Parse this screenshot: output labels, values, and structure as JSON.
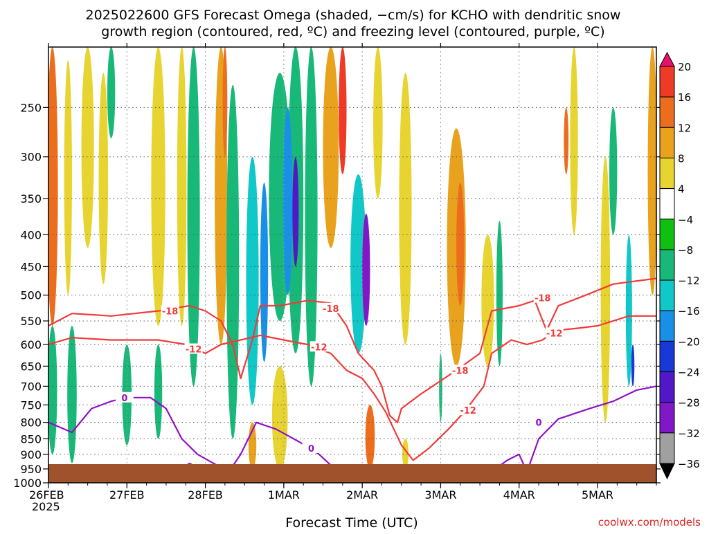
{
  "chart_data": {
    "type": "heatmap",
    "title_line1": "2025022600 GFS Forecast Omega (shaded, −cm/s) for KCHO with dendritic snow",
    "title_line2": "growth region (contoured, red, ºC) and freezing level (contoured, purple, ºC)",
    "xlabel": "Forecast Time (UTC)",
    "ylabel": "",
    "credit": "coolwx.com/models",
    "x_ticks": [
      "26FEB",
      "27FEB",
      "28FEB",
      "1MAR",
      "2MAR",
      "3MAR",
      "4MAR",
      "5MAR"
    ],
    "x_year": "2025",
    "x_range_days": [
      0,
      7.75
    ],
    "y_ticks": [
      250,
      300,
      350,
      400,
      450,
      500,
      550,
      600,
      650,
      700,
      750,
      800,
      850,
      900,
      950,
      1000
    ],
    "y_tick_labels": [
      "250",
      "300",
      "350",
      "400",
      "450",
      "500",
      "550",
      "600",
      "650",
      "700",
      "750",
      "800",
      "850",
      "900",
      "950",
      "1000"
    ],
    "y_range_hpa": [
      1000,
      200
    ],
    "y_scale": "log-pressure",
    "grid": true,
    "colorbar": {
      "labels": [
        "20",
        "16",
        "12",
        "8",
        "4",
        "−4",
        "−8",
        "−12",
        "−16",
        "−20",
        "−24",
        "−28",
        "−32",
        "−36"
      ],
      "colors": [
        "#e8106e",
        "#ee3a26",
        "#ec6e1c",
        "#e8a21e",
        "#e8d430",
        "#ffffff",
        "#10c010",
        "#18b878",
        "#10c8c8",
        "#1890e8",
        "#1838d8",
        "#5018c8",
        "#8018c8",
        "#a0a0a0",
        "#000000"
      ]
    },
    "ground_color": "#a0522d",
    "omega_features": [
      {
        "day": 0.05,
        "p_top": 200,
        "p_bot": 560,
        "width": 0.07,
        "value": 12
      },
      {
        "day": 0.25,
        "p_top": 210,
        "p_bot": 500,
        "width": 0.05,
        "value": 6
      },
      {
        "day": 0.5,
        "p_top": 200,
        "p_bot": 420,
        "width": 0.08,
        "value": 6
      },
      {
        "day": 0.7,
        "p_top": 220,
        "p_bot": 480,
        "width": 0.06,
        "value": 6
      },
      {
        "day": 0.8,
        "p_top": 200,
        "p_bot": 280,
        "width": 0.05,
        "value": -8
      },
      {
        "day": 0.05,
        "p_top": 560,
        "p_bot": 900,
        "width": 0.06,
        "value": -8
      },
      {
        "day": 0.3,
        "p_top": 560,
        "p_bot": 930,
        "width": 0.06,
        "value": -8
      },
      {
        "day": 1.0,
        "p_top": 600,
        "p_bot": 870,
        "width": 0.06,
        "value": -8
      },
      {
        "day": 1.4,
        "p_top": 200,
        "p_bot": 560,
        "width": 0.09,
        "value": 6
      },
      {
        "day": 1.4,
        "p_top": 600,
        "p_bot": 850,
        "width": 0.05,
        "value": -8
      },
      {
        "day": 1.7,
        "p_top": 200,
        "p_bot": 560,
        "width": 0.06,
        "value": 6
      },
      {
        "day": 1.85,
        "p_top": 200,
        "p_bot": 700,
        "width": 0.08,
        "value": -8
      },
      {
        "day": 2.2,
        "p_top": 200,
        "p_bot": 600,
        "width": 0.08,
        "value": 8
      },
      {
        "day": 2.25,
        "p_top": 200,
        "p_bot": 300,
        "width": 0.03,
        "value": 14
      },
      {
        "day": 2.35,
        "p_top": 230,
        "p_bot": 850,
        "width": 0.08,
        "value": -8
      },
      {
        "day": 2.6,
        "p_top": 300,
        "p_bot": 750,
        "width": 0.08,
        "value": -12
      },
      {
        "day": 2.6,
        "p_top": 800,
        "p_bot": 950,
        "width": 0.05,
        "value": 10
      },
      {
        "day": 2.75,
        "p_top": 330,
        "p_bot": 640,
        "width": 0.05,
        "value": -18
      },
      {
        "day": 2.95,
        "p_top": 220,
        "p_bot": 550,
        "width": 0.14,
        "value": -8
      },
      {
        "day": 2.95,
        "p_top": 650,
        "p_bot": 950,
        "width": 0.1,
        "value": 6
      },
      {
        "day": 3.15,
        "p_top": 200,
        "p_bot": 620,
        "width": 0.1,
        "value": -8
      },
      {
        "day": 3.05,
        "p_top": 250,
        "p_bot": 500,
        "width": 0.06,
        "value": -16
      },
      {
        "day": 3.15,
        "p_top": 300,
        "p_bot": 450,
        "width": 0.04,
        "value": -24
      },
      {
        "day": 3.35,
        "p_top": 200,
        "p_bot": 700,
        "width": 0.08,
        "value": -8
      },
      {
        "day": 3.6,
        "p_top": 200,
        "p_bot": 420,
        "width": 0.1,
        "value": 8
      },
      {
        "day": 3.75,
        "p_top": 200,
        "p_bot": 320,
        "width": 0.05,
        "value": 18
      },
      {
        "day": 3.95,
        "p_top": 320,
        "p_bot": 620,
        "width": 0.1,
        "value": -12
      },
      {
        "day": 4.05,
        "p_top": 370,
        "p_bot": 560,
        "width": 0.05,
        "value": -28
      },
      {
        "day": 4.1,
        "p_top": 750,
        "p_bot": 950,
        "width": 0.06,
        "value": 14
      },
      {
        "day": 4.2,
        "p_top": 200,
        "p_bot": 350,
        "width": 0.06,
        "value": 6
      },
      {
        "day": 4.55,
        "p_top": 220,
        "p_bot": 600,
        "width": 0.08,
        "value": 6
      },
      {
        "day": 4.55,
        "p_top": 850,
        "p_bot": 950,
        "width": 0.04,
        "value": 6
      },
      {
        "day": 5.0,
        "p_top": 620,
        "p_bot": 800,
        "width": 0.02,
        "value": -8
      },
      {
        "day": 5.2,
        "p_top": 270,
        "p_bot": 650,
        "width": 0.12,
        "value": 8
      },
      {
        "day": 5.25,
        "p_top": 330,
        "p_bot": 520,
        "width": 0.05,
        "value": 12
      },
      {
        "day": 5.6,
        "p_top": 400,
        "p_bot": 650,
        "width": 0.08,
        "value": 6
      },
      {
        "day": 5.75,
        "p_top": 380,
        "p_bot": 650,
        "width": 0.04,
        "value": -8
      },
      {
        "day": 6.6,
        "p_top": 250,
        "p_bot": 320,
        "width": 0.03,
        "value": 14
      },
      {
        "day": 6.7,
        "p_top": 200,
        "p_bot": 400,
        "width": 0.05,
        "value": 6
      },
      {
        "day": 7.1,
        "p_top": 300,
        "p_bot": 800,
        "width": 0.06,
        "value": 6
      },
      {
        "day": 7.2,
        "p_top": 250,
        "p_bot": 400,
        "width": 0.05,
        "value": -10
      },
      {
        "day": 7.4,
        "p_top": 400,
        "p_bot": 700,
        "width": 0.04,
        "value": -12
      },
      {
        "day": 7.45,
        "p_top": 600,
        "p_bot": 700,
        "width": 0.02,
        "value": -20
      },
      {
        "day": 7.7,
        "p_top": 200,
        "p_bot": 500,
        "width": 0.06,
        "value": 8
      }
    ],
    "contours": [
      {
        "label": "-18",
        "color": "#f03a3a",
        "label_at": [
          [
            1.55,
            530
          ],
          [
            3.6,
            525
          ],
          [
            5.25,
            660
          ],
          [
            6.3,
            505
          ]
        ],
        "points": [
          [
            0,
            560
          ],
          [
            0.3,
            535
          ],
          [
            0.8,
            540
          ],
          [
            1.4,
            530
          ],
          [
            1.8,
            520
          ],
          [
            2.0,
            530
          ],
          [
            2.2,
            550
          ],
          [
            2.35,
            600
          ],
          [
            2.45,
            680
          ],
          [
            2.6,
            590
          ],
          [
            2.7,
            520
          ],
          [
            2.95,
            520
          ],
          [
            3.3,
            510
          ],
          [
            3.6,
            515
          ],
          [
            3.8,
            560
          ],
          [
            3.95,
            620
          ],
          [
            4.15,
            660
          ],
          [
            4.25,
            700
          ],
          [
            4.35,
            780
          ],
          [
            4.45,
            800
          ],
          [
            4.5,
            760
          ],
          [
            4.75,
            720
          ],
          [
            5.2,
            660
          ],
          [
            5.5,
            620
          ],
          [
            5.65,
            530
          ],
          [
            6.0,
            520
          ],
          [
            6.2,
            510
          ],
          [
            6.35,
            570
          ],
          [
            6.5,
            520
          ],
          [
            6.85,
            500
          ],
          [
            7.2,
            480
          ],
          [
            7.75,
            470
          ]
        ]
      },
      {
        "label": "-12",
        "color": "#f03a3a",
        "label_at": [
          [
            1.85,
            610
          ],
          [
            3.45,
            605
          ],
          [
            5.35,
            765
          ],
          [
            6.45,
            575
          ]
        ],
        "points": [
          [
            0,
            600
          ],
          [
            0.3,
            585
          ],
          [
            0.8,
            590
          ],
          [
            1.4,
            590
          ],
          [
            1.75,
            600
          ],
          [
            2.0,
            620
          ],
          [
            2.2,
            600
          ],
          [
            2.45,
            590
          ],
          [
            2.7,
            580
          ],
          [
            3.0,
            590
          ],
          [
            3.3,
            600
          ],
          [
            3.6,
            620
          ],
          [
            3.8,
            660
          ],
          [
            4.0,
            680
          ],
          [
            4.15,
            720
          ],
          [
            4.3,
            770
          ],
          [
            4.5,
            870
          ],
          [
            4.65,
            920
          ],
          [
            4.85,
            880
          ],
          [
            5.1,
            820
          ],
          [
            5.3,
            770
          ],
          [
            5.55,
            700
          ],
          [
            5.65,
            620
          ],
          [
            5.9,
            590
          ],
          [
            6.1,
            600
          ],
          [
            6.3,
            590
          ],
          [
            6.45,
            570
          ],
          [
            6.75,
            565
          ],
          [
            7.0,
            560
          ],
          [
            7.4,
            540
          ],
          [
            7.75,
            540
          ]
        ]
      },
      {
        "label": "0",
        "color": "#9010c8",
        "label_at": [
          [
            0.97,
            730
          ],
          [
            1.8,
            940
          ],
          [
            3.35,
            880
          ],
          [
            5.5,
            995
          ],
          [
            6.25,
            800
          ]
        ],
        "points": [
          [
            0,
            800
          ],
          [
            0.3,
            830
          ],
          [
            0.55,
            760
          ],
          [
            0.8,
            740
          ],
          [
            1.0,
            730
          ],
          [
            1.3,
            730
          ],
          [
            1.5,
            760
          ],
          [
            1.7,
            850
          ],
          [
            1.9,
            900
          ],
          [
            2.1,
            930
          ],
          [
            2.3,
            960
          ],
          [
            2.45,
            900
          ],
          [
            2.65,
            800
          ],
          [
            2.9,
            820
          ],
          [
            3.2,
            860
          ],
          [
            3.45,
            900
          ],
          [
            3.65,
            950
          ],
          [
            3.85,
            1000
          ],
          [
            4.3,
            1010
          ],
          [
            4.55,
            1000
          ],
          [
            4.8,
            960
          ],
          [
            5.0,
            1000
          ],
          [
            5.4,
            1000
          ],
          [
            5.6,
            990
          ],
          [
            5.7,
            950
          ],
          [
            5.85,
            920
          ],
          [
            6.0,
            900
          ],
          [
            6.1,
            960
          ],
          [
            6.25,
            850
          ],
          [
            6.5,
            790
          ],
          [
            6.9,
            760
          ],
          [
            7.2,
            740
          ],
          [
            7.5,
            710
          ],
          [
            7.75,
            700
          ]
        ]
      }
    ]
  }
}
